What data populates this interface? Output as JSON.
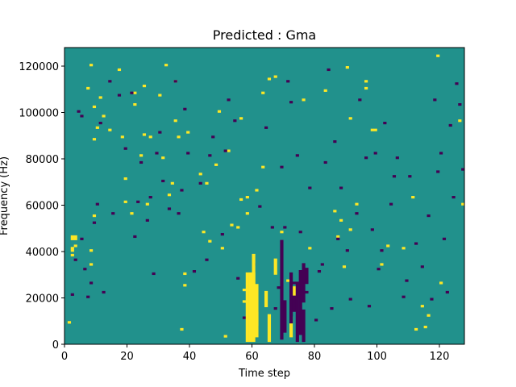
{
  "chart_data": {
    "type": "heatmap",
    "title": "Predicted : Gma",
    "xlabel": "Time step",
    "ylabel": "Frequency (Hz)",
    "xlim": [
      0,
      128
    ],
    "ylim": [
      0,
      128000
    ],
    "xticks": [
      0,
      20,
      40,
      60,
      80,
      100,
      120
    ],
    "xtick_labels": [
      "0",
      "20",
      "40",
      "60",
      "80",
      "100",
      "120"
    ],
    "yticks": [
      0,
      20000,
      40000,
      60000,
      80000,
      100000,
      120000
    ],
    "ytick_labels": [
      "0",
      "20000",
      "40000",
      "60000",
      "80000",
      "100000",
      "120000"
    ],
    "grid": false,
    "colorscale": "viridis",
    "background_value": 0,
    "colors": {
      "low": "#440154",
      "mid": "#21918c",
      "high": "#fde725"
    },
    "cells": {
      "high": [
        [
          1,
          9
        ],
        [
          2,
          38
        ],
        [
          2,
          40
        ],
        [
          2,
          41
        ],
        [
          2,
          45
        ],
        [
          2,
          46
        ],
        [
          3,
          42
        ],
        [
          3,
          45
        ],
        [
          3,
          46
        ],
        [
          7,
          110
        ],
        [
          8,
          120
        ],
        [
          8,
          34
        ],
        [
          8,
          40
        ],
        [
          9,
          88
        ],
        [
          9,
          102
        ],
        [
          9,
          55
        ],
        [
          10,
          93
        ],
        [
          11,
          106
        ],
        [
          12,
          98
        ],
        [
          14,
          92
        ],
        [
          17,
          118
        ],
        [
          18,
          89
        ],
        [
          19,
          71
        ],
        [
          19,
          61
        ],
        [
          21,
          56
        ],
        [
          22,
          103
        ],
        [
          22,
          108
        ],
        [
          24,
          81
        ],
        [
          25,
          111
        ],
        [
          25,
          90
        ],
        [
          26,
          60
        ],
        [
          27,
          89
        ],
        [
          30,
          107
        ],
        [
          31,
          80
        ],
        [
          32,
          120
        ],
        [
          33,
          64
        ],
        [
          34,
          69
        ],
        [
          35,
          113
        ],
        [
          35,
          96
        ],
        [
          36,
          89
        ],
        [
          37,
          6
        ],
        [
          38,
          25
        ],
        [
          38,
          30
        ],
        [
          39,
          91
        ],
        [
          43,
          73
        ],
        [
          44,
          48
        ],
        [
          45,
          69
        ],
        [
          46,
          44
        ],
        [
          48,
          77
        ],
        [
          49,
          100
        ],
        [
          50,
          41
        ],
        [
          51,
          3
        ],
        [
          52,
          83
        ],
        [
          53,
          51
        ],
        [
          55,
          50
        ],
        [
          56,
          97
        ],
        [
          56,
          62
        ],
        [
          57,
          23
        ],
        [
          57,
          18
        ],
        [
          58,
          63
        ],
        [
          58,
          56
        ],
        [
          59,
          21
        ],
        [
          59,
          16
        ],
        [
          61,
          66
        ],
        [
          63,
          108
        ],
        [
          63,
          76
        ],
        [
          65,
          114
        ],
        [
          67,
          115
        ],
        [
          69,
          48
        ],
        [
          71,
          27
        ],
        [
          76,
          105
        ],
        [
          78,
          41
        ],
        [
          83,
          109
        ],
        [
          86,
          57
        ],
        [
          87,
          46
        ],
        [
          88,
          53
        ],
        [
          89,
          33
        ],
        [
          90,
          119
        ],
        [
          91,
          49
        ],
        [
          91,
          97
        ],
        [
          93,
          60
        ],
        [
          96,
          113
        ],
        [
          96,
          110
        ],
        [
          98,
          92
        ],
        [
          99,
          92
        ],
        [
          101,
          34
        ],
        [
          103,
          42
        ],
        [
          108,
          41
        ],
        [
          111,
          63
        ],
        [
          112,
          6
        ],
        [
          114,
          16
        ],
        [
          115,
          7
        ],
        [
          116,
          12
        ],
        [
          119,
          124
        ],
        [
          120,
          26
        ],
        [
          126,
          96
        ],
        [
          127,
          60
        ]
      ],
      "low": [
        [
          2,
          21
        ],
        [
          3,
          36
        ],
        [
          4,
          100
        ],
        [
          5,
          98
        ],
        [
          5,
          45
        ],
        [
          6,
          32
        ],
        [
          7,
          20
        ],
        [
          8,
          26
        ],
        [
          9,
          52
        ],
        [
          10,
          60
        ],
        [
          11,
          95
        ],
        [
          12,
          22
        ],
        [
          14,
          113
        ],
        [
          15,
          56
        ],
        [
          17,
          107
        ],
        [
          19,
          84
        ],
        [
          21,
          108
        ],
        [
          22,
          46
        ],
        [
          23,
          61
        ],
        [
          24,
          78
        ],
        [
          26,
          53
        ],
        [
          27,
          63
        ],
        [
          28,
          30
        ],
        [
          29,
          82
        ],
        [
          30,
          91
        ],
        [
          31,
          70
        ],
        [
          33,
          58
        ],
        [
          35,
          113
        ],
        [
          36,
          56
        ],
        [
          37,
          66
        ],
        [
          38,
          101
        ],
        [
          39,
          82
        ],
        [
          41,
          31
        ],
        [
          43,
          69
        ],
        [
          45,
          36
        ],
        [
          46,
          81
        ],
        [
          47,
          89
        ],
        [
          50,
          47
        ],
        [
          51,
          83
        ],
        [
          52,
          105
        ],
        [
          54,
          96
        ],
        [
          55,
          28
        ],
        [
          57,
          11
        ],
        [
          59,
          21
        ],
        [
          60,
          34
        ],
        [
          62,
          59
        ],
        [
          64,
          93
        ],
        [
          66,
          50
        ],
        [
          67,
          15
        ],
        [
          68,
          24
        ],
        [
          69,
          76
        ],
        [
          70,
          50
        ],
        [
          71,
          113
        ],
        [
          72,
          104
        ],
        [
          73,
          26
        ],
        [
          74,
          81
        ],
        [
          75,
          48
        ],
        [
          77,
          22
        ],
        [
          78,
          67
        ],
        [
          80,
          10
        ],
        [
          81,
          31
        ],
        [
          82,
          34
        ],
        [
          83,
          78
        ],
        [
          84,
          118
        ],
        [
          85,
          15
        ],
        [
          86,
          87
        ],
        [
          87,
          45
        ],
        [
          88,
          67
        ],
        [
          90,
          40
        ],
        [
          91,
          19
        ],
        [
          93,
          56
        ],
        [
          94,
          105
        ],
        [
          96,
          80
        ],
        [
          97,
          16
        ],
        [
          98,
          49
        ],
        [
          99,
          82
        ],
        [
          100,
          32
        ],
        [
          101,
          40
        ],
        [
          102,
          95
        ],
        [
          104,
          60
        ],
        [
          105,
          72
        ],
        [
          106,
          80
        ],
        [
          108,
          20
        ],
        [
          109,
          27
        ],
        [
          110,
          72
        ],
        [
          112,
          43
        ],
        [
          114,
          33
        ],
        [
          116,
          55
        ],
        [
          117,
          19
        ],
        [
          118,
          105
        ],
        [
          119,
          74
        ],
        [
          120,
          82
        ],
        [
          121,
          45
        ],
        [
          122,
          22
        ],
        [
          123,
          94
        ],
        [
          124,
          63
        ],
        [
          125,
          112
        ],
        [
          126,
          103
        ],
        [
          127,
          75
        ]
      ],
      "high_columns": [
        [
          58,
          1,
          30
        ],
        [
          59,
          1,
          30
        ],
        [
          60,
          1,
          30
        ],
        [
          61,
          3,
          25
        ],
        [
          60,
          3,
          38
        ],
        [
          61,
          8,
          13
        ],
        [
          64,
          16,
          22
        ],
        [
          65,
          1,
          12
        ],
        [
          67,
          30,
          36
        ],
        [
          72,
          3,
          11
        ],
        [
          73,
          19,
          24
        ]
      ],
      "low_columns": [
        [
          69,
          2,
          44
        ],
        [
          70,
          5,
          18
        ],
        [
          72,
          9,
          30
        ],
        [
          73,
          14,
          20
        ],
        [
          74,
          1,
          26
        ],
        [
          75,
          4,
          31
        ],
        [
          76,
          1,
          14
        ],
        [
          76,
          18,
          34
        ],
        [
          77,
          26,
          32
        ]
      ]
    }
  }
}
